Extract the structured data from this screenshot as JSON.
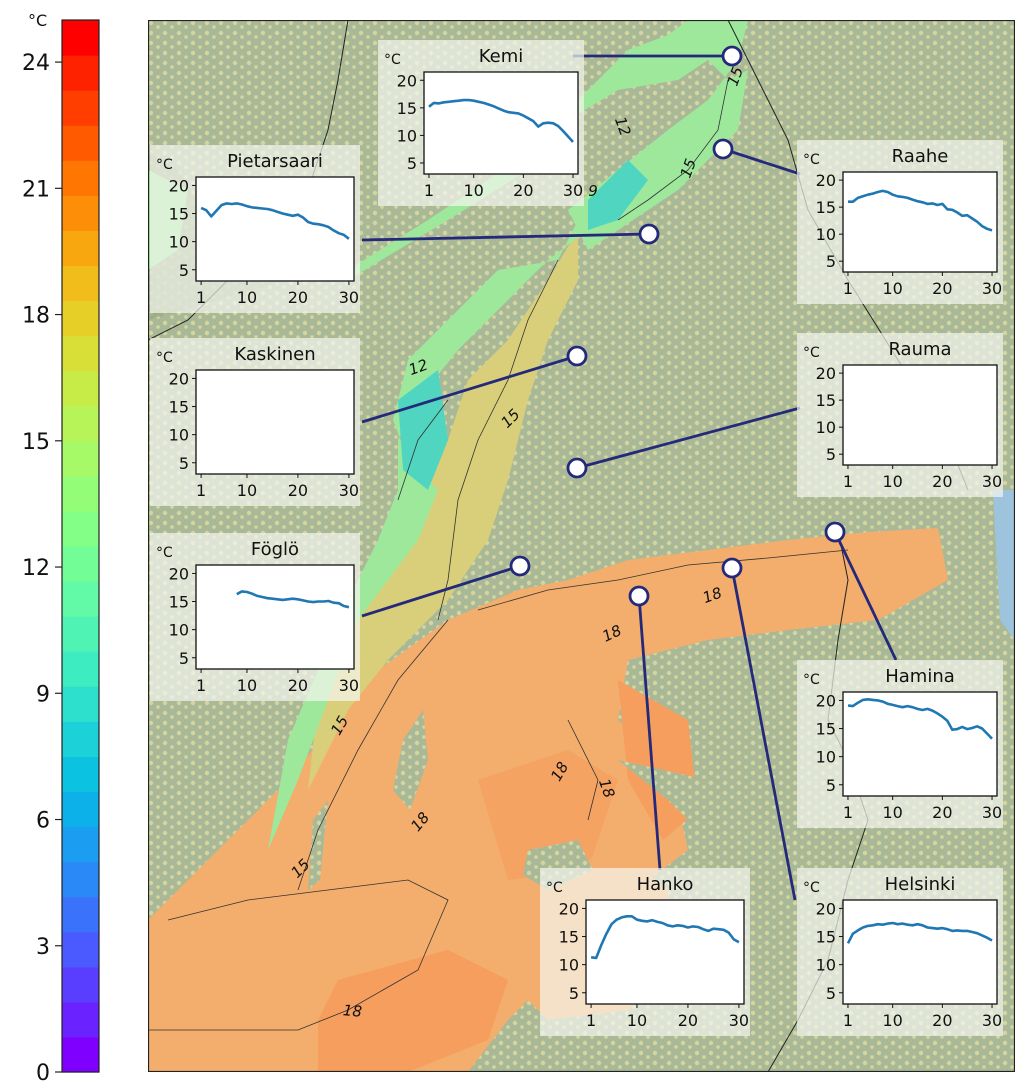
{
  "colorbar": {
    "unit": "°C",
    "min": 0,
    "max": 25,
    "ticks": [
      0,
      3,
      6,
      9,
      12,
      15,
      18,
      21,
      24
    ],
    "colors": [
      "#8000ff",
      "#6a23ff",
      "#5a3eff",
      "#4a5afe",
      "#3a72fb",
      "#2b88f7",
      "#1b9ef1",
      "#0db1ea",
      "#0cc2e1",
      "#1cd1d8",
      "#2de0cd",
      "#3eecc1",
      "#4ff4b4",
      "#62faa6",
      "#72fd97",
      "#83ff87",
      "#94fd77",
      "#a6fa67",
      "#b7f457",
      "#c7ec47",
      "#d8e037",
      "#e6d028",
      "#f1bd1a",
      "#f8a80e",
      "#fc8f07",
      "#ff7602",
      "#ff5a00",
      "#ff3e00",
      "#ff2200",
      "#ff0000"
    ]
  },
  "map": {
    "colors": {
      "land": "#a6b796",
      "forest": "#8fa57f",
      "field": "#d8d69e",
      "water_open": "#9dc4dc",
      "sea_warm": "#f3ad6c",
      "sea_warmer": "#f59e5e",
      "sea_mid": "#d9cf7b",
      "sea_cool": "#9ee89c",
      "sea_cold": "#50d6c0",
      "connector": "#25297a"
    },
    "contour_labels": [
      {
        "text": "15"
      },
      {
        "text": "12"
      },
      {
        "text": "15"
      },
      {
        "text": "9"
      },
      {
        "text": "12"
      },
      {
        "text": "15"
      },
      {
        "text": "18"
      },
      {
        "text": "18"
      },
      {
        "text": "15"
      },
      {
        "text": "18"
      },
      {
        "text": "18"
      },
      {
        "text": "18"
      },
      {
        "text": "15"
      },
      {
        "text": "18"
      }
    ]
  },
  "insets": [
    {
      "name": "Kemi",
      "unit": "°C",
      "yticks": [
        5,
        10,
        15,
        20
      ],
      "xticks": [
        1,
        10,
        20,
        30
      ],
      "x": [
        1,
        2,
        3,
        4,
        5,
        6,
        7,
        8,
        9,
        10,
        11,
        12,
        13,
        14,
        15,
        16,
        17,
        18,
        19,
        20,
        21,
        22,
        23,
        24,
        25,
        26,
        27,
        28,
        29,
        30
      ],
      "y": [
        15.2,
        15.9,
        15.8,
        16.0,
        16.1,
        16.2,
        16.3,
        16.4,
        16.4,
        16.3,
        16.1,
        15.9,
        15.6,
        15.3,
        14.9,
        14.5,
        14.2,
        14.1,
        14.0,
        13.6,
        13.1,
        12.6,
        11.6,
        12.2,
        12.3,
        12.2,
        11.7,
        10.8,
        9.8,
        8.8
      ]
    },
    {
      "name": "Pietarsaari",
      "unit": "°C",
      "yticks": [
        5,
        10,
        15,
        20
      ],
      "xticks": [
        1,
        10,
        20,
        30
      ],
      "x": [
        1,
        2,
        3,
        4,
        5,
        6,
        7,
        8,
        9,
        10,
        11,
        12,
        13,
        14,
        15,
        16,
        17,
        18,
        19,
        20,
        21,
        22,
        23,
        24,
        25,
        26,
        27,
        28,
        29,
        30
      ],
      "y": [
        16.0,
        15.6,
        14.5,
        15.5,
        16.5,
        16.8,
        16.7,
        16.8,
        16.6,
        16.3,
        16.1,
        16.0,
        15.9,
        15.8,
        15.6,
        15.3,
        15.0,
        14.8,
        14.6,
        14.8,
        14.3,
        13.5,
        13.2,
        13.1,
        12.9,
        12.6,
        12.0,
        11.5,
        11.2,
        10.5
      ]
    },
    {
      "name": "Raahe",
      "unit": "°C",
      "yticks": [
        5,
        10,
        15,
        20
      ],
      "xticks": [
        1,
        10,
        20,
        30
      ],
      "x": [
        1,
        2,
        3,
        4,
        5,
        6,
        7,
        8,
        9,
        10,
        11,
        12,
        13,
        14,
        15,
        16,
        17,
        18,
        19,
        20,
        21,
        22,
        23,
        24,
        25,
        26,
        27,
        28,
        29,
        30
      ],
      "y": [
        16.0,
        16.0,
        16.7,
        17.0,
        17.3,
        17.5,
        17.8,
        18.0,
        17.8,
        17.3,
        17.0,
        16.9,
        16.7,
        16.4,
        16.1,
        15.9,
        15.6,
        15.7,
        15.4,
        15.6,
        14.6,
        14.5,
        14.0,
        13.4,
        13.5,
        12.9,
        12.3,
        11.5,
        11.0,
        10.7
      ]
    },
    {
      "name": "Kaskinen",
      "unit": "°C",
      "yticks": [
        5,
        10,
        15,
        20
      ],
      "xticks": [
        1,
        10,
        20,
        30
      ],
      "x": [],
      "y": []
    },
    {
      "name": "Rauma",
      "unit": "°C",
      "yticks": [
        5,
        10,
        15,
        20
      ],
      "xticks": [
        1,
        10,
        20,
        30
      ],
      "x": [],
      "y": []
    },
    {
      "name": "Föglö",
      "unit": "°C",
      "yticks": [
        5,
        10,
        15,
        20
      ],
      "xticks": [
        1,
        10,
        20,
        30
      ],
      "x": [
        8,
        9,
        10,
        11,
        12,
        13,
        14,
        15,
        16,
        17,
        18,
        19,
        20,
        21,
        22,
        23,
        24,
        25,
        26,
        27,
        28,
        29,
        30
      ],
      "y": [
        16.3,
        16.8,
        16.7,
        16.4,
        16.0,
        15.8,
        15.6,
        15.5,
        15.4,
        15.3,
        15.4,
        15.5,
        15.4,
        15.2,
        15.0,
        14.9,
        15.0,
        15.0,
        15.1,
        14.8,
        14.7,
        14.2,
        14.0
      ]
    },
    {
      "name": "Hamina",
      "unit": "°C",
      "yticks": [
        5,
        10,
        15,
        20
      ],
      "xticks": [
        1,
        10,
        20,
        30
      ],
      "x": [
        1,
        2,
        3,
        4,
        5,
        6,
        7,
        8,
        9,
        10,
        11,
        12,
        13,
        14,
        15,
        16,
        17,
        18,
        19,
        20,
        21,
        22,
        23,
        24,
        25,
        26,
        27,
        28,
        29,
        30
      ],
      "y": [
        19.1,
        19.0,
        19.6,
        20.1,
        20.2,
        20.1,
        20.0,
        19.8,
        19.4,
        19.2,
        19.0,
        18.8,
        19.0,
        18.8,
        18.5,
        18.3,
        18.5,
        18.2,
        17.7,
        17.1,
        16.4,
        14.8,
        14.9,
        15.3,
        14.9,
        15.1,
        15.4,
        15.0,
        14.1,
        13.2
      ]
    },
    {
      "name": "Hanko",
      "unit": "°C",
      "yticks": [
        5,
        10,
        15,
        20
      ],
      "xticks": [
        1,
        10,
        20,
        30
      ],
      "x": [
        1,
        2,
        3,
        4,
        5,
        6,
        7,
        8,
        9,
        10,
        11,
        12,
        13,
        14,
        15,
        16,
        17,
        18,
        19,
        20,
        21,
        22,
        23,
        24,
        25,
        26,
        27,
        28,
        29,
        30
      ],
      "y": [
        11.3,
        11.2,
        13.5,
        15.5,
        17.2,
        18.0,
        18.4,
        18.6,
        18.6,
        18.0,
        17.8,
        17.7,
        17.9,
        17.6,
        17.4,
        17.0,
        16.8,
        17.0,
        16.9,
        16.6,
        16.8,
        16.7,
        16.3,
        16.0,
        16.4,
        16.3,
        16.2,
        15.7,
        14.5,
        14.0
      ]
    },
    {
      "name": "Helsinki",
      "unit": "°C",
      "yticks": [
        5,
        10,
        15,
        20
      ],
      "xticks": [
        1,
        10,
        20,
        30
      ],
      "x": [
        1,
        2,
        3,
        4,
        5,
        6,
        7,
        8,
        9,
        10,
        11,
        12,
        13,
        14,
        15,
        16,
        17,
        18,
        19,
        20,
        21,
        22,
        23,
        24,
        25,
        26,
        27,
        28,
        29,
        30
      ],
      "y": [
        13.8,
        15.5,
        16.1,
        16.6,
        16.9,
        17.0,
        17.2,
        17.1,
        17.3,
        17.4,
        17.2,
        17.3,
        17.1,
        17.0,
        17.2,
        17.0,
        16.6,
        16.5,
        16.4,
        16.5,
        16.3,
        16.0,
        16.1,
        16.0,
        16.0,
        15.8,
        15.6,
        15.2,
        14.8,
        14.3
      ]
    }
  ]
}
